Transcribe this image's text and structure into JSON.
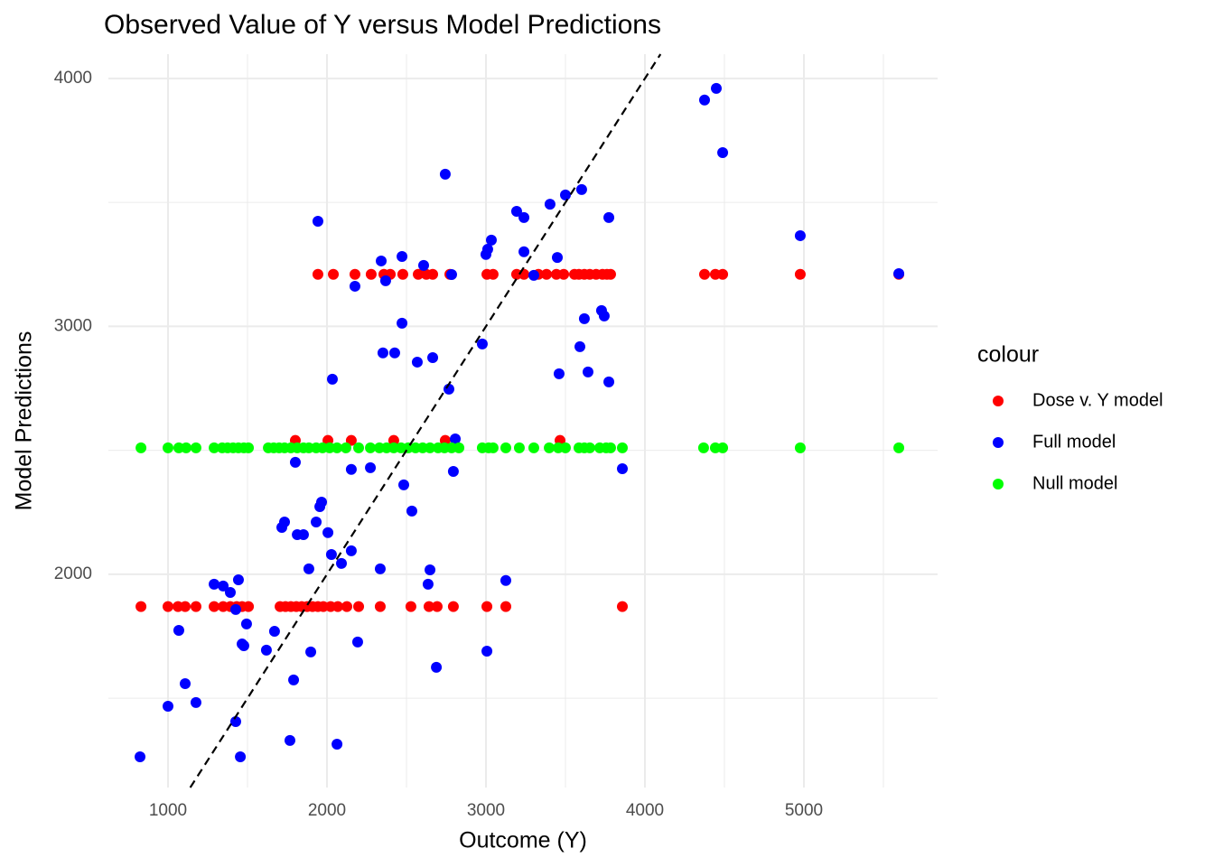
{
  "chart_data": {
    "type": "scatter",
    "title": "Observed Value of Y versus Model Predictions",
    "x_label": "Outcome (Y)",
    "y_label": "Model Predictions",
    "legend_title": "colour",
    "legend_position": "right",
    "xlim": [
      625,
      5841
    ],
    "ylim": [
      1140,
      4098
    ],
    "xticks": [
      1000,
      2000,
      3000,
      4000,
      5000
    ],
    "yticks": [
      2000,
      3000,
      4000
    ],
    "x_minor_grid": [
      1500,
      2500,
      3500,
      4500,
      5500
    ],
    "y_minor_grid": [
      1500,
      2500,
      3500
    ],
    "grid": true,
    "reference_line": {
      "slope": 1,
      "intercept": 0,
      "color": "#000000",
      "dashed": true
    },
    "series": [
      {
        "name": "Dose v. Y model",
        "color": "#ff0000",
        "x": [
          830,
          1000,
          1063,
          1108,
          1176,
          1290,
          1347,
          1392,
          1432,
          1466,
          1506,
          1705,
          1739,
          1773,
          1807,
          1841,
          1875,
          1909,
          1943,
          1977,
          2023,
          2068,
          2125,
          2199,
          2335,
          2528,
          2642,
          2693,
          2795,
          3006,
          3125,
          3858,
          1801,
          2006,
          2153,
          2420,
          2744,
          3466,
          1943,
          2040,
          2176,
          2278,
          2358,
          2398,
          2477,
          2574,
          2625,
          2665,
          2773,
          3006,
          3045,
          3193,
          3239,
          3330,
          3381,
          3443,
          3489,
          3557,
          3585,
          3619,
          3653,
          3693,
          3733,
          3761,
          3784,
          4375,
          4443,
          4489,
          4977,
          5597
        ],
        "values": [
          1870,
          1870,
          1870,
          1870,
          1870,
          1870,
          1870,
          1870,
          1870,
          1870,
          1870,
          1870,
          1870,
          1870,
          1870,
          1870,
          1870,
          1870,
          1870,
          1870,
          1870,
          1870,
          1870,
          1870,
          1870,
          1870,
          1870,
          1870,
          1870,
          1870,
          1870,
          1870,
          2540,
          2540,
          2540,
          2540,
          2540,
          2540,
          3210,
          3210,
          3210,
          3210,
          3210,
          3210,
          3210,
          3210,
          3210,
          3210,
          3210,
          3210,
          3210,
          3210,
          3210,
          3210,
          3210,
          3210,
          3210,
          3210,
          3210,
          3210,
          3210,
          3210,
          3210,
          3210,
          3210,
          3210,
          3210,
          3210,
          3210,
          3210
        ]
      },
      {
        "name": "Full model",
        "color": "#0000ff",
        "x": [
          824,
          1000,
          1068,
          1108,
          1176,
          1290,
          1347,
          1392,
          1443,
          1426,
          1466,
          1477,
          1494,
          1426,
          1455,
          1619,
          1670,
          1716,
          1733,
          1767,
          1790,
          1801,
          1813,
          1852,
          1886,
          1898,
          1932,
          1955,
          1966,
          1943,
          2006,
          2028,
          2034,
          2063,
          2091,
          2153,
          2153,
          2176,
          2193,
          2273,
          2335,
          2341,
          2352,
          2369,
          2426,
          2472,
          2472,
          2483,
          2534,
          2568,
          2608,
          2636,
          2648,
          2665,
          2688,
          2744,
          2767,
          2784,
          2795,
          2807,
          2977,
          3000,
          3011,
          3034,
          3006,
          3125,
          3193,
          3239,
          3239,
          3301,
          3403,
          3449,
          3460,
          3500,
          3602,
          3619,
          3591,
          3642,
          3727,
          3744,
          3773,
          3773,
          3858,
          4375,
          4449,
          4489,
          4977,
          5597
        ],
        "values": [
          1264,
          1468,
          1774,
          1559,
          1483,
          1960,
          1953,
          1927,
          1978,
          1858,
          1719,
          1712,
          1800,
          1406,
          1264,
          1694,
          1770,
          2189,
          2211,
          1330,
          1574,
          2452,
          2160,
          2160,
          2022,
          1687,
          2211,
          2273,
          2291,
          3424,
          2168,
          2080,
          2787,
          1315,
          2044,
          2095,
          2423,
          3162,
          1727,
          2430,
          2022,
          3264,
          2893,
          3184,
          2893,
          3013,
          3282,
          2361,
          2255,
          2856,
          3246,
          1960,
          2018,
          2874,
          1625,
          3614,
          2747,
          3209,
          2415,
          2546,
          2929,
          3290,
          3311,
          3348,
          1690,
          1975,
          3464,
          3439,
          3301,
          3206,
          3493,
          3278,
          2809,
          3530,
          3552,
          3031,
          2918,
          2816,
          3064,
          3042,
          3439,
          2776,
          2426,
          3913,
          3960,
          3701,
          3366,
          3213
        ]
      },
      {
        "name": "Null model",
        "color": "#00ff00",
        "x": [
          830,
          1000,
          1068,
          1114,
          1176,
          1290,
          1341,
          1375,
          1409,
          1443,
          1477,
          1506,
          1631,
          1665,
          1699,
          1733,
          1773,
          1813,
          1852,
          1886,
          1932,
          1972,
          2017,
          2063,
          2119,
          2199,
          2273,
          2330,
          2375,
          2420,
          2466,
          2511,
          2557,
          2602,
          2648,
          2699,
          2739,
          2784,
          2830,
          2977,
          3017,
          3045,
          3125,
          3210,
          3301,
          3398,
          3455,
          3500,
          3585,
          3619,
          3653,
          3716,
          3756,
          3784,
          3858,
          4369,
          4443,
          4489,
          4977,
          5597
        ],
        "values": [
          2510,
          2510,
          2510,
          2510,
          2510,
          2510,
          2510,
          2510,
          2510,
          2510,
          2510,
          2510,
          2510,
          2510,
          2510,
          2510,
          2510,
          2510,
          2510,
          2510,
          2510,
          2510,
          2510,
          2510,
          2510,
          2510,
          2510,
          2510,
          2510,
          2510,
          2510,
          2510,
          2510,
          2510,
          2510,
          2510,
          2510,
          2510,
          2510,
          2510,
          2510,
          2510,
          2510,
          2510,
          2510,
          2510,
          2510,
          2510,
          2510,
          2510,
          2510,
          2510,
          2510,
          2510,
          2510,
          2510,
          2510,
          2510,
          2510,
          2510
        ]
      }
    ]
  }
}
